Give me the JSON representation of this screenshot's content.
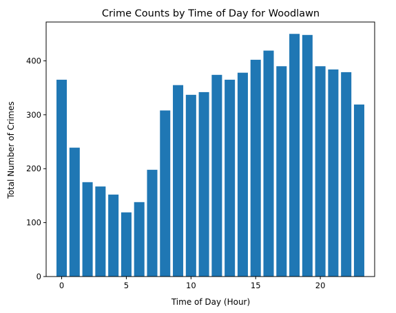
{
  "chart_data": {
    "type": "bar",
    "title": "Crime Counts by Time of Day for Woodlawn",
    "xlabel": "Time of Day (Hour)",
    "ylabel": "Total Number of Crimes",
    "x": [
      0,
      1,
      2,
      3,
      4,
      5,
      6,
      7,
      8,
      9,
      10,
      11,
      12,
      13,
      14,
      15,
      16,
      17,
      18,
      19,
      20,
      21,
      22,
      23
    ],
    "values": [
      365,
      239,
      175,
      167,
      152,
      119,
      138,
      198,
      308,
      355,
      337,
      342,
      374,
      365,
      378,
      402,
      419,
      390,
      450,
      448,
      390,
      384,
      379,
      319
    ],
    "xlim": [
      -1.2,
      24.2
    ],
    "ylim": [
      0,
      472
    ],
    "xticks": [
      0,
      5,
      10,
      15,
      20
    ],
    "yticks": [
      0,
      100,
      200,
      300,
      400
    ],
    "xtick_labels": [
      "0",
      "5",
      "10",
      "15",
      "20"
    ],
    "ytick_labels": [
      "0",
      "100",
      "200",
      "300",
      "400"
    ],
    "bar_color": "#1f77b4",
    "grid": false,
    "legend": "none"
  }
}
